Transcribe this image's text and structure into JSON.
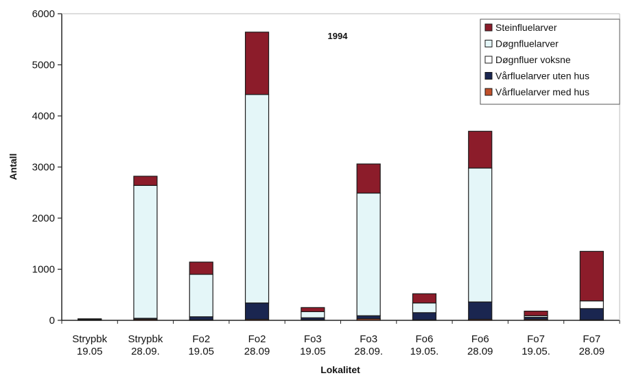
{
  "chart_data": {
    "type": "bar",
    "stacked": true,
    "title": "1994",
    "xlabel": "Lokalitet",
    "ylabel": "Antall",
    "ylim": [
      0,
      6000
    ],
    "yticks": [
      0,
      1000,
      2000,
      3000,
      4000,
      5000,
      6000
    ],
    "ytick_labels": [
      "0",
      "1000",
      "2000",
      "3000",
      "4000",
      "5000",
      "6000"
    ],
    "grid": false,
    "legend_position": "top-right",
    "categories": [
      [
        "Strypbk",
        "19.05"
      ],
      [
        "Strypbk",
        "28.09."
      ],
      [
        "Fo2",
        "19.05"
      ],
      [
        "Fo2",
        "28.09"
      ],
      [
        "Fo3",
        "19.05"
      ],
      [
        "Fo3",
        "28.09."
      ],
      [
        "Fo6",
        "19.05."
      ],
      [
        "Fo6",
        "28.09"
      ],
      [
        "Fo7",
        "19.05."
      ],
      [
        "Fo7",
        "28.09"
      ]
    ],
    "series": [
      {
        "name": "Vårfluelarver med hus",
        "color": "#c0502a",
        "values": [
          10,
          20,
          10,
          20,
          10,
          30,
          10,
          20,
          20,
          10
        ]
      },
      {
        "name": "Vårfluelarver uten hus",
        "color": "#1a2650",
        "values": [
          5,
          20,
          60,
          320,
          40,
          60,
          140,
          340,
          40,
          220
        ]
      },
      {
        "name": "Døgnfluer voksne",
        "color": "#ffffff",
        "values": [
          0,
          0,
          0,
          0,
          0,
          0,
          0,
          0,
          0,
          150
        ]
      },
      {
        "name": "Døgnfluelarver",
        "color": "#e4f6f8",
        "values": [
          10,
          2600,
          830,
          4080,
          120,
          2400,
          190,
          2620,
          30,
          0
        ]
      },
      {
        "name": "Steinfluelarver",
        "color": "#8c1c2a",
        "values": [
          5,
          180,
          240,
          1220,
          80,
          570,
          180,
          720,
          90,
          970
        ]
      }
    ]
  }
}
